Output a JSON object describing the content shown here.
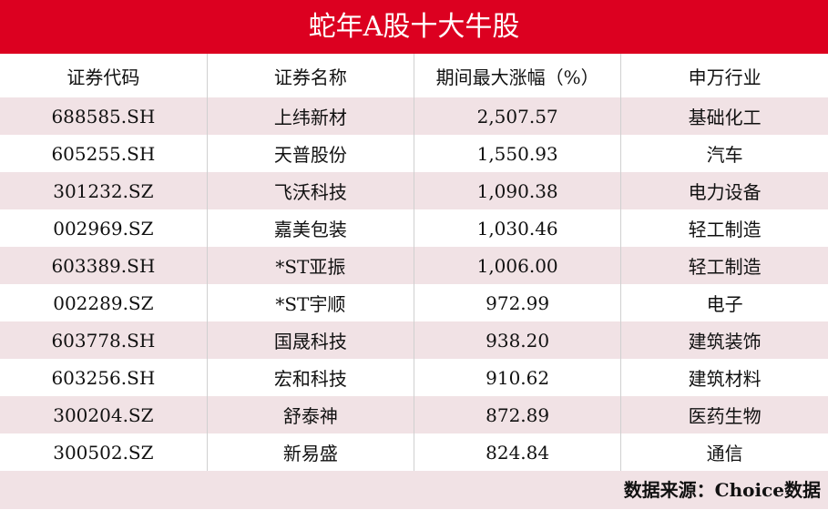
{
  "title": "蛇年A股十大牛股",
  "chart_data": {
    "type": "table",
    "title": "蛇年A股十大牛股",
    "columns": [
      "证券代码",
      "证券名称",
      "期间最大涨幅（%）",
      "申万行业"
    ],
    "rows": [
      [
        "688585.SH",
        "上纬新材",
        "2,507.57",
        "基础化工"
      ],
      [
        "605255.SH",
        "天普股份",
        "1,550.93",
        "汽车"
      ],
      [
        "301232.SZ",
        "飞沃科技",
        "1,090.38",
        "电力设备"
      ],
      [
        "002969.SZ",
        "嘉美包装",
        "1,030.46",
        "轻工制造"
      ],
      [
        "603389.SH",
        "*ST亚振",
        "1,006.00",
        "轻工制造"
      ],
      [
        "002289.SZ",
        "*ST宇顺",
        "972.99",
        "电子"
      ],
      [
        "603778.SH",
        "国晟科技",
        "938.20",
        "建筑装饰"
      ],
      [
        "603256.SH",
        "宏和科技",
        "910.62",
        "建筑材料"
      ],
      [
        "300204.SZ",
        "舒泰神",
        "872.89",
        "医药生物"
      ],
      [
        "300502.SZ",
        "新易盛",
        "824.84",
        "通信"
      ]
    ],
    "source": "数据来源：Choice数据"
  },
  "colors": {
    "title_bg": "#dc0020",
    "stripe": "#f1e2e5"
  }
}
